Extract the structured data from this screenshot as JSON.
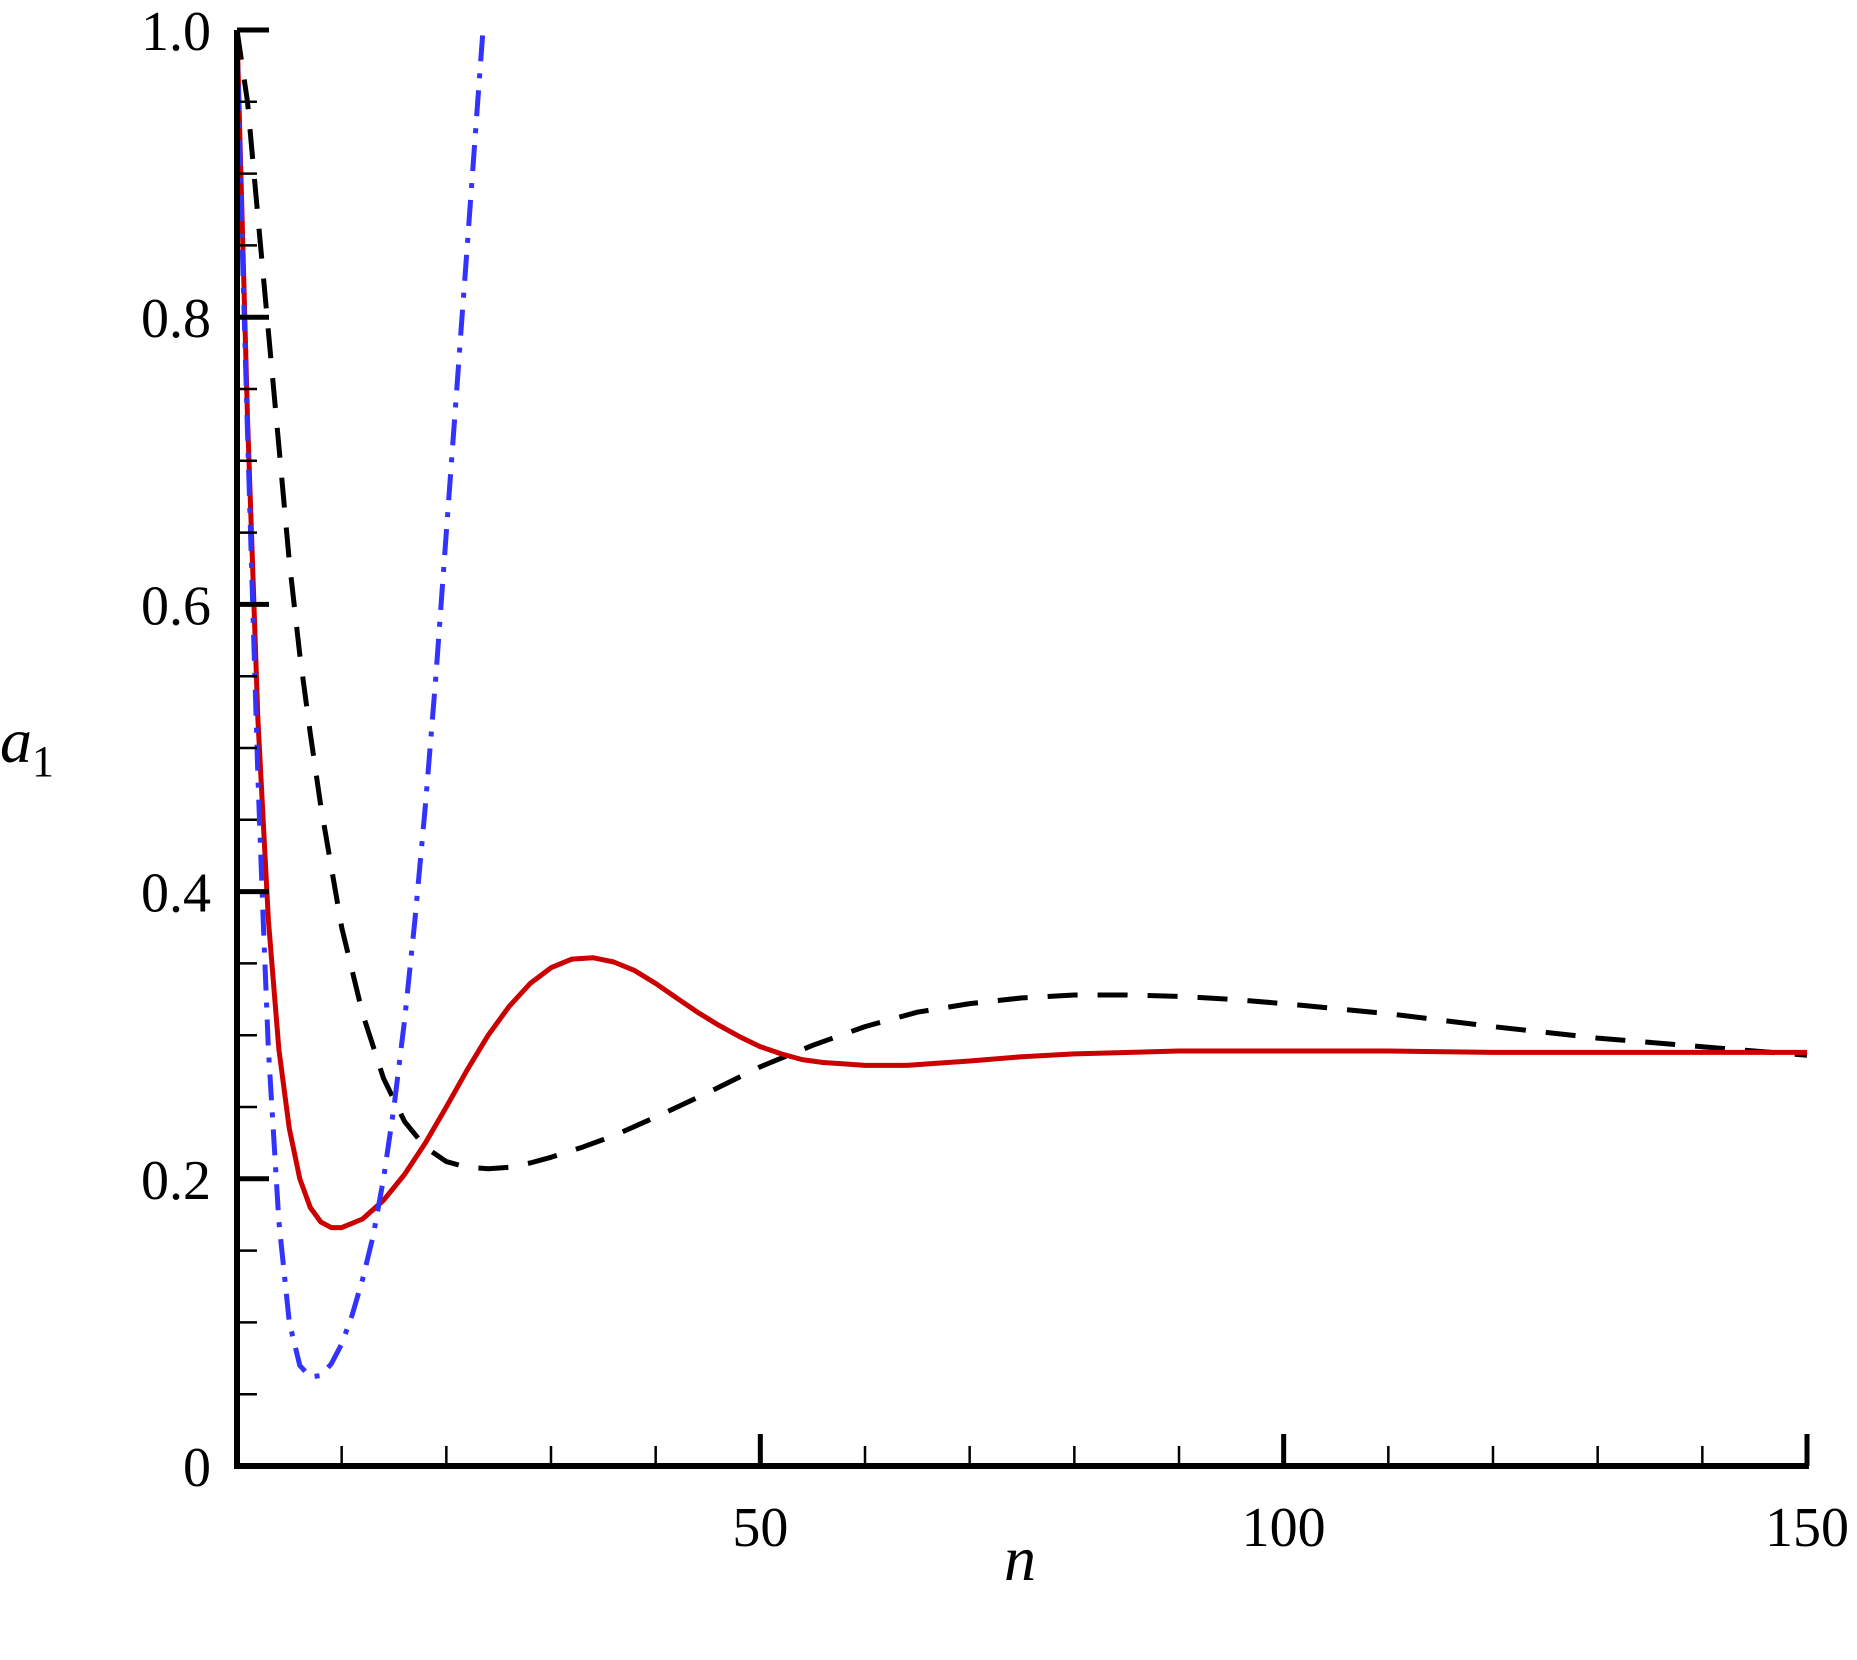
{
  "chart_data": {
    "type": "line",
    "title": "",
    "xlabel": "n",
    "ylabel": "a",
    "ylabel_subscript": "1",
    "xlim": [
      0,
      150
    ],
    "ylim": [
      0,
      1.0
    ],
    "x_ticks": [
      50,
      100,
      150
    ],
    "x_tick_labels": [
      "50",
      "100",
      "150"
    ],
    "y_ticks": [
      0,
      0.2,
      0.4,
      0.6,
      0.8,
      1.0
    ],
    "y_tick_labels": [
      "0",
      "0.2",
      "0.4",
      "0.6",
      "0.8",
      "1.0"
    ],
    "x_minor_step": 10,
    "y_minor_step": 0.05,
    "grid": false,
    "legend": "none",
    "series": [
      {
        "style": "dashed",
        "color": "#000000",
        "x": [
          0,
          1,
          2,
          3,
          4,
          5,
          6,
          7,
          8,
          10,
          12,
          14,
          16,
          18,
          20,
          22,
          24,
          26,
          28,
          30,
          33,
          36,
          40,
          45,
          50,
          55,
          60,
          65,
          70,
          75,
          80,
          85,
          90,
          95,
          100,
          110,
          120,
          130,
          140,
          150
        ],
        "y": [
          1.0,
          0.95,
          0.87,
          0.79,
          0.71,
          0.63,
          0.565,
          0.51,
          0.46,
          0.375,
          0.315,
          0.27,
          0.24,
          0.222,
          0.212,
          0.208,
          0.207,
          0.208,
          0.211,
          0.215,
          0.222,
          0.23,
          0.243,
          0.26,
          0.278,
          0.293,
          0.306,
          0.316,
          0.322,
          0.326,
          0.328,
          0.328,
          0.327,
          0.325,
          0.322,
          0.315,
          0.306,
          0.298,
          0.292,
          0.286
        ]
      },
      {
        "style": "solid",
        "color": "#cc0000",
        "x": [
          0,
          1,
          2,
          3,
          4,
          5,
          6,
          7,
          8,
          9,
          10,
          12,
          14,
          16,
          18,
          20,
          22,
          24,
          26,
          28,
          30,
          32,
          34,
          36,
          38,
          40,
          42,
          44,
          46,
          48,
          50,
          52,
          54,
          56,
          58,
          60,
          62,
          64,
          66,
          70,
          75,
          80,
          90,
          100,
          110,
          120,
          130,
          140,
          150
        ],
        "y": [
          1.0,
          0.73,
          0.52,
          0.38,
          0.29,
          0.235,
          0.2,
          0.18,
          0.17,
          0.166,
          0.166,
          0.172,
          0.185,
          0.203,
          0.225,
          0.25,
          0.276,
          0.3,
          0.32,
          0.336,
          0.347,
          0.353,
          0.354,
          0.351,
          0.345,
          0.336,
          0.326,
          0.316,
          0.307,
          0.299,
          0.292,
          0.287,
          0.283,
          0.281,
          0.28,
          0.279,
          0.279,
          0.279,
          0.28,
          0.282,
          0.285,
          0.287,
          0.289,
          0.289,
          0.289,
          0.288,
          0.288,
          0.288,
          0.288
        ]
      },
      {
        "style": "dash-dot",
        "color": "#3333ff",
        "x": [
          0,
          0.5,
          1,
          1.5,
          2,
          2.5,
          3,
          4,
          5,
          6,
          7,
          8,
          9,
          10,
          11,
          12,
          13,
          14,
          15,
          16,
          17,
          18,
          19,
          20,
          21,
          21.5,
          22,
          22.5,
          23,
          23.5
        ],
        "y": [
          1.0,
          0.85,
          0.72,
          0.6,
          0.48,
          0.38,
          0.29,
          0.17,
          0.1,
          0.07,
          0.062,
          0.063,
          0.071,
          0.085,
          0.105,
          0.13,
          0.16,
          0.2,
          0.25,
          0.31,
          0.38,
          0.46,
          0.55,
          0.65,
          0.75,
          0.8,
          0.85,
          0.9,
          0.95,
          1.0
        ]
      }
    ]
  }
}
